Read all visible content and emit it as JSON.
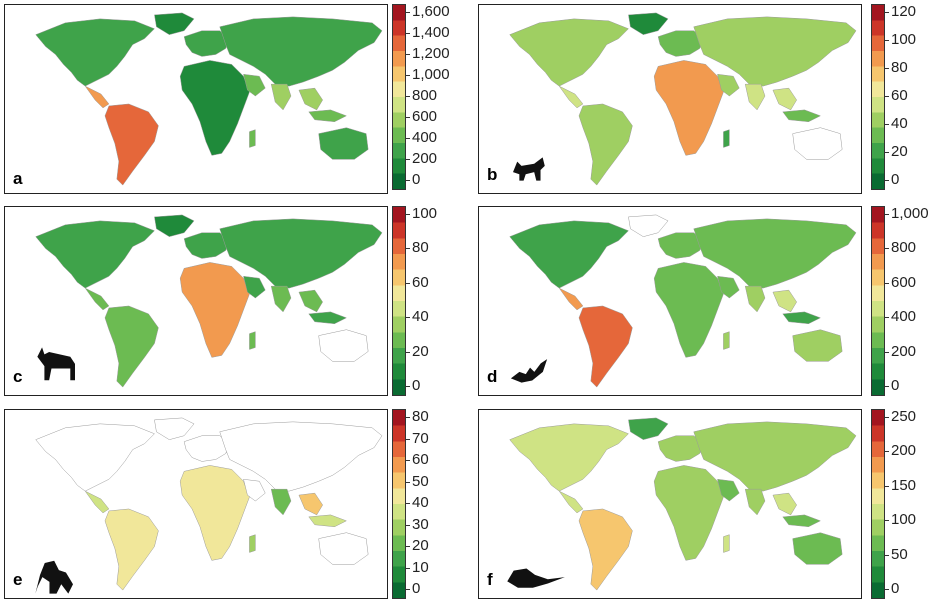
{
  "figure": {
    "panels": [
      {
        "letter": "a",
        "animal": "none",
        "ticks": [
          "0",
          "200",
          "400",
          "600",
          "800",
          "1,000",
          "1,200",
          "1,400",
          "1,600"
        ]
      },
      {
        "letter": "b",
        "animal": "fox-icon",
        "ticks": [
          "0",
          "20",
          "40",
          "60",
          "80",
          "100",
          "120"
        ]
      },
      {
        "letter": "c",
        "animal": "goat-icon",
        "ticks": [
          "0",
          "20",
          "40",
          "60",
          "80",
          "100"
        ]
      },
      {
        "letter": "d",
        "animal": "bat-icon",
        "ticks": [
          "0",
          "200",
          "400",
          "600",
          "800",
          "1,000"
        ]
      },
      {
        "letter": "e",
        "animal": "monkey-icon",
        "ticks": [
          "0",
          "10",
          "20",
          "30",
          "40",
          "50",
          "60",
          "70",
          "80"
        ]
      },
      {
        "letter": "f",
        "animal": "rodent-icon",
        "ticks": [
          "0",
          "50",
          "100",
          "150",
          "200",
          "250"
        ]
      }
    ],
    "colors": {
      "scale": [
        "#0a6b32",
        "#1f8a3a",
        "#3fa34a",
        "#6cbb52",
        "#9fcf62",
        "#cfe384",
        "#f1e79a",
        "#f6c66e",
        "#f29a4f",
        "#e5673a",
        "#cc3528",
        "#a3151f"
      ]
    }
  }
}
